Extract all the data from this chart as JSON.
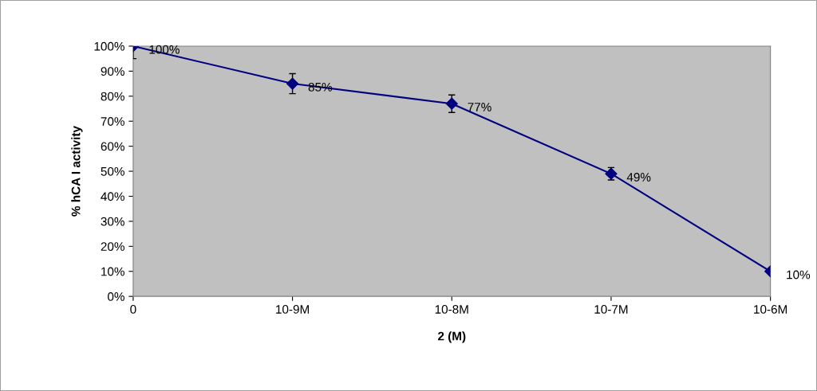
{
  "chart_data": {
    "type": "line",
    "xlabel": "2 (M)",
    "ylabel": "% hCA I activity",
    "categories": [
      "0",
      "10-9M",
      "10-8M",
      "10-7M",
      "10-6M"
    ],
    "series": [
      {
        "color": "#000080",
        "values": [
          100,
          85,
          77,
          49,
          10
        ],
        "errors": [
          5,
          4,
          3.5,
          2.5,
          null
        ],
        "value_labels": [
          "100%",
          "85%",
          "77%",
          "49%",
          "10%"
        ]
      }
    ],
    "ylim": [
      0,
      100
    ],
    "yticks": [
      {
        "value": 0,
        "label": "0%"
      },
      {
        "value": 10,
        "label": "10%"
      },
      {
        "value": 20,
        "label": "20%"
      },
      {
        "value": 30,
        "label": "30%"
      },
      {
        "value": 40,
        "label": "40%"
      },
      {
        "value": 50,
        "label": "50%"
      },
      {
        "value": 60,
        "label": "60%"
      },
      {
        "value": 70,
        "label": "70%"
      },
      {
        "value": 80,
        "label": "80%"
      },
      {
        "value": 90,
        "label": "90%"
      },
      {
        "value": 100,
        "label": "100%"
      }
    ],
    "marker": "diamond",
    "line_style": "solid",
    "grid": false
  }
}
